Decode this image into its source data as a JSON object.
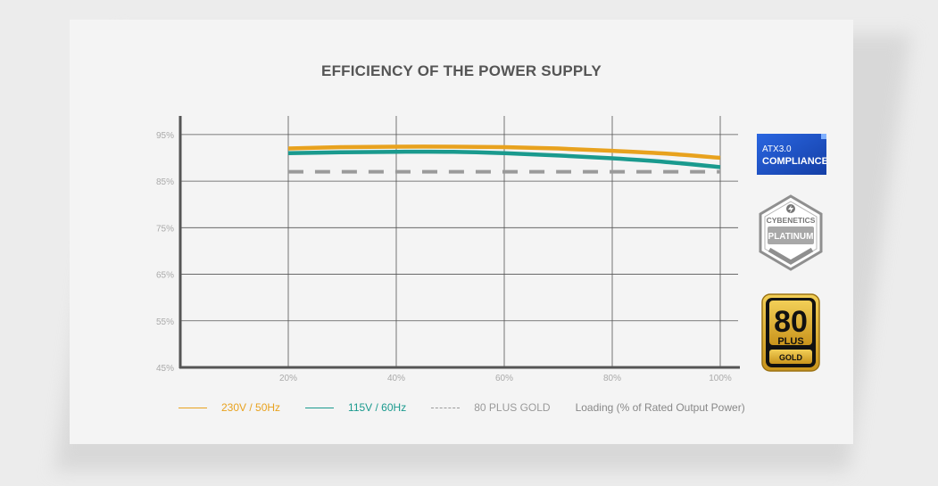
{
  "chart_data": {
    "type": "line",
    "title": "EFFICIENCY OF THE POWER SUPPLY",
    "xlabel": "Loading (% of Rated Output Power)",
    "ylabel": "",
    "x_ticks": [
      "20%",
      "40%",
      "60%",
      "80%",
      "100%"
    ],
    "y_ticks": [
      "95%",
      "85%",
      "75%",
      "65%",
      "55%",
      "45%"
    ],
    "xlim": [
      0,
      100
    ],
    "ylim": [
      45,
      99
    ],
    "grid": true,
    "series": [
      {
        "name": "230V / 50Hz",
        "color": "#e8a21e",
        "style": "solid",
        "x": [
          20,
          30,
          40,
          50,
          60,
          70,
          80,
          90,
          100
        ],
        "y": [
          92.0,
          92.3,
          92.4,
          92.4,
          92.3,
          92.0,
          91.5,
          90.9,
          90.0
        ]
      },
      {
        "name": "115V / 60Hz",
        "color": "#1a9a8e",
        "style": "solid",
        "x": [
          20,
          30,
          40,
          50,
          60,
          70,
          80,
          90,
          100
        ],
        "y": [
          91.0,
          91.2,
          91.3,
          91.3,
          91.0,
          90.5,
          89.9,
          89.1,
          88.0
        ]
      },
      {
        "name": "80 PLUS GOLD",
        "color": "#9a9a9a",
        "style": "dashed",
        "x": [
          20,
          100
        ],
        "y": [
          87.0,
          87.0
        ]
      }
    ]
  },
  "badges": {
    "atx": {
      "line1": "ATX3.0",
      "line2": "COMPLIANCE"
    },
    "cybenetics": {
      "line1": "CYBENETICS",
      "line2": "PLATINUM"
    },
    "plus80": {
      "line1": "80",
      "line2": "PLUS",
      "line3": "GOLD"
    }
  }
}
